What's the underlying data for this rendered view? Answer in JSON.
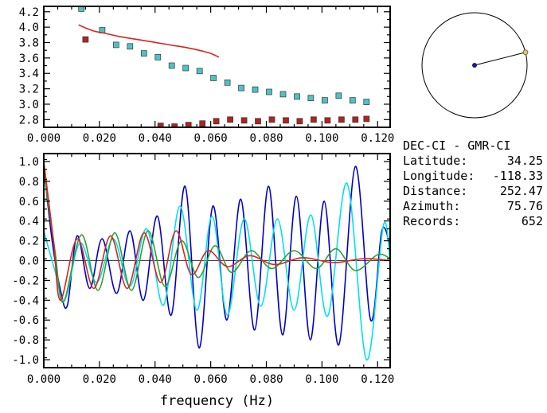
{
  "info_panel": {
    "title": "DEC-CI - GMR-CI",
    "rows": [
      {
        "label": "Latitude:",
        "value": "34.25"
      },
      {
        "label": "Longitude:",
        "value": "-118.33"
      },
      {
        "label": "Distance:",
        "value": "252.47"
      },
      {
        "label": "Azimuth:",
        "value": "75.76"
      },
      {
        "label": "Records:",
        "value": "652"
      }
    ]
  },
  "azimuth_dial": {
    "azimuth_deg": 75.76,
    "circle_color": "#000000",
    "center_dot_color": "#1a1a8c",
    "marker_color": "#e8c84a"
  },
  "chart_data": [
    {
      "type": "scatter",
      "title": "",
      "xlabel": "",
      "ylabel": "",
      "xlim": [
        0,
        0.1245
      ],
      "ylim": [
        2.7,
        4.27
      ],
      "xticks": [
        0,
        0.02,
        0.04,
        0.06,
        0.08,
        0.1,
        0.12
      ],
      "xtick_labels": [
        "0.000",
        "0.020",
        "0.040",
        "0.060",
        "0.080",
        "0.100",
        "0.120"
      ],
      "x_minor_step": 0.005,
      "yticks": [
        2.8,
        3.0,
        3.2,
        3.4,
        3.6,
        3.8,
        4.0,
        4.2
      ],
      "ytick_labels": [
        "2.8",
        "3.0",
        "3.2",
        "3.4",
        "3.6",
        "3.8",
        "4.0",
        "4.2"
      ],
      "y_minor_step": 0.1,
      "zero_line": false,
      "series": [
        {
          "name": "phase-velocity-cyan-squares",
          "type": "scatter",
          "marker": "square",
          "color": "#4fc3c3",
          "points": [
            [
              0.0135,
              4.24
            ],
            [
              0.021,
              3.96
            ],
            [
              0.026,
              3.77
            ],
            [
              0.031,
              3.75
            ],
            [
              0.036,
              3.66
            ],
            [
              0.041,
              3.61
            ],
            [
              0.046,
              3.5
            ],
            [
              0.051,
              3.47
            ],
            [
              0.056,
              3.43
            ],
            [
              0.061,
              3.34
            ],
            [
              0.066,
              3.28
            ],
            [
              0.071,
              3.21
            ],
            [
              0.076,
              3.19
            ],
            [
              0.081,
              3.16
            ],
            [
              0.086,
              3.13
            ],
            [
              0.091,
              3.1
            ],
            [
              0.096,
              3.08
            ],
            [
              0.101,
              3.05
            ],
            [
              0.106,
              3.11
            ],
            [
              0.111,
              3.05
            ],
            [
              0.116,
              3.03
            ]
          ]
        },
        {
          "name": "reference-dispersion-red-line",
          "type": "line",
          "color": "#dd2222",
          "points": [
            [
              0.0125,
              4.03
            ],
            [
              0.015,
              3.99
            ],
            [
              0.018,
              3.95
            ],
            [
              0.022,
              3.92
            ],
            [
              0.027,
              3.88
            ],
            [
              0.032,
              3.85
            ],
            [
              0.037,
              3.82
            ],
            [
              0.042,
              3.79
            ],
            [
              0.047,
              3.76
            ],
            [
              0.052,
              3.73
            ],
            [
              0.057,
              3.69
            ],
            [
              0.06,
              3.66
            ],
            [
              0.063,
              3.61
            ]
          ]
        },
        {
          "name": "group-velocity-darkred-squares",
          "type": "scatter",
          "marker": "square",
          "color": "#b22222",
          "points": [
            [
              0.015,
              3.84
            ],
            [
              0.042,
              2.72
            ],
            [
              0.047,
              2.71
            ],
            [
              0.052,
              2.73
            ],
            [
              0.057,
              2.75
            ],
            [
              0.062,
              2.78
            ],
            [
              0.067,
              2.8
            ],
            [
              0.072,
              2.79
            ],
            [
              0.077,
              2.78
            ],
            [
              0.082,
              2.8
            ],
            [
              0.087,
              2.79
            ],
            [
              0.092,
              2.78
            ],
            [
              0.097,
              2.8
            ],
            [
              0.102,
              2.79
            ],
            [
              0.107,
              2.8
            ],
            [
              0.112,
              2.8
            ],
            [
              0.116,
              2.81
            ]
          ]
        }
      ]
    },
    {
      "type": "line",
      "title": "",
      "xlabel": "frequency (Hz)",
      "ylabel": "",
      "xlim": [
        0,
        0.1245
      ],
      "ylim": [
        -1.08,
        1.08
      ],
      "xticks": [
        0,
        0.02,
        0.04,
        0.06,
        0.08,
        0.1,
        0.12
      ],
      "xtick_labels": [
        "0.000",
        "0.020",
        "0.040",
        "0.060",
        "0.080",
        "0.100",
        "0.120"
      ],
      "x_minor_step": 0.005,
      "yticks": [
        -1.0,
        -0.8,
        -0.6,
        -0.4,
        -0.2,
        0.0,
        0.2,
        0.4,
        0.6,
        0.8,
        1.0
      ],
      "ytick_labels": [
        "-1.0",
        "-0.8",
        "-0.6",
        "-0.4",
        "-0.2",
        "0.0",
        "0.2",
        "0.4",
        "0.6",
        "0.8",
        "1.0"
      ],
      "y_minor_step": 0.1,
      "zero_line": true,
      "series": [
        {
          "name": "correlation-blue-curve",
          "type": "line",
          "color": "#0000cd",
          "points": [
            [
              0.0,
              0.95
            ],
            [
              0.003,
              0.2
            ],
            [
              0.006,
              -0.3
            ],
            [
              0.0085,
              -0.45
            ],
            [
              0.012,
              0.25
            ],
            [
              0.0165,
              -0.28
            ],
            [
              0.021,
              0.22
            ],
            [
              0.0262,
              -0.33
            ],
            [
              0.031,
              0.3
            ],
            [
              0.0358,
              -0.4
            ],
            [
              0.0408,
              0.45
            ],
            [
              0.0458,
              -0.55
            ],
            [
              0.0508,
              0.75
            ],
            [
              0.0558,
              -0.88
            ],
            [
              0.0608,
              0.55
            ],
            [
              0.0658,
              -0.6
            ],
            [
              0.0708,
              0.62
            ],
            [
              0.0758,
              -0.7
            ],
            [
              0.0808,
              0.75
            ],
            [
              0.0858,
              -0.75
            ],
            [
              0.0908,
              0.65
            ],
            [
              0.0958,
              -0.8
            ],
            [
              0.1008,
              0.6
            ],
            [
              0.106,
              -0.85
            ],
            [
              0.112,
              0.95
            ],
            [
              0.1175,
              -0.6
            ],
            [
              0.1215,
              0.3
            ],
            [
              0.1245,
              0.15
            ]
          ]
        },
        {
          "name": "correlation-cyan-curve",
          "type": "line",
          "color": "#00e0ee",
          "points": [
            [
              0.0,
              0.3
            ],
            [
              0.004,
              -0.1
            ],
            [
              0.0075,
              -0.4
            ],
            [
              0.013,
              0.18
            ],
            [
              0.019,
              -0.22
            ],
            [
              0.025,
              0.22
            ],
            [
              0.031,
              -0.26
            ],
            [
              0.037,
              0.32
            ],
            [
              0.043,
              -0.45
            ],
            [
              0.049,
              0.55
            ],
            [
              0.055,
              -0.5
            ],
            [
              0.0605,
              0.45
            ],
            [
              0.066,
              -0.55
            ],
            [
              0.072,
              0.42
            ],
            [
              0.078,
              -0.46
            ],
            [
              0.084,
              0.42
            ],
            [
              0.09,
              -0.5
            ],
            [
              0.096,
              0.46
            ],
            [
              0.102,
              -0.56
            ],
            [
              0.109,
              0.78
            ],
            [
              0.116,
              -1.0
            ],
            [
              0.122,
              0.35
            ],
            [
              0.1245,
              0.0
            ]
          ]
        },
        {
          "name": "correlation-green-curve",
          "type": "line",
          "color": "#30a030",
          "points": [
            [
              0.0,
              0.9
            ],
            [
              0.004,
              0.1
            ],
            [
              0.007,
              -0.42
            ],
            [
              0.0135,
              0.26
            ],
            [
              0.0195,
              -0.3
            ],
            [
              0.0255,
              0.28
            ],
            [
              0.0315,
              -0.3
            ],
            [
              0.0375,
              0.3
            ],
            [
              0.0435,
              -0.26
            ],
            [
              0.0495,
              0.2
            ],
            [
              0.0555,
              -0.17
            ],
            [
              0.0615,
              0.15
            ],
            [
              0.0675,
              -0.12
            ],
            [
              0.0745,
              0.1
            ],
            [
              0.082,
              -0.08
            ],
            [
              0.09,
              0.1
            ],
            [
              0.098,
              -0.08
            ],
            [
              0.105,
              0.12
            ],
            [
              0.112,
              -0.1
            ],
            [
              0.12,
              0.06
            ],
            [
              0.1245,
              0.02
            ]
          ]
        },
        {
          "name": "correlation-red-curve",
          "type": "line",
          "color": "#dd2222",
          "points": [
            [
              0.0,
              1.0
            ],
            [
              0.0035,
              0.2
            ],
            [
              0.006,
              -0.4
            ],
            [
              0.012,
              0.22
            ],
            [
              0.018,
              -0.28
            ],
            [
              0.024,
              0.25
            ],
            [
              0.03,
              -0.28
            ],
            [
              0.036,
              0.28
            ],
            [
              0.042,
              -0.22
            ],
            [
              0.0475,
              0.3
            ],
            [
              0.053,
              -0.14
            ],
            [
              0.059,
              0.1
            ],
            [
              0.066,
              -0.06
            ],
            [
              0.074,
              0.05
            ],
            [
              0.083,
              -0.04
            ],
            [
              0.093,
              0.03
            ],
            [
              0.104,
              -0.02
            ],
            [
              0.115,
              0.02
            ],
            [
              0.1245,
              0.0
            ]
          ]
        }
      ]
    }
  ]
}
